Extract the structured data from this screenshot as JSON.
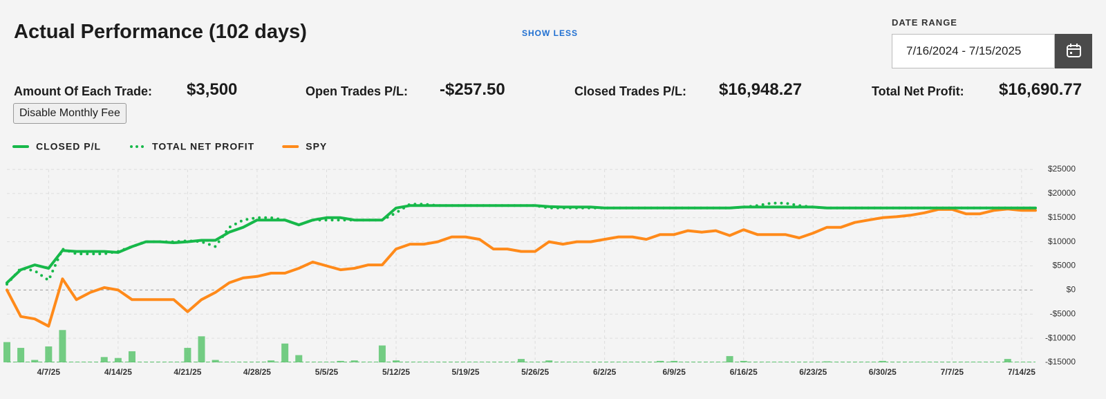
{
  "header": {
    "title": "Actual Performance (102 days)",
    "toggle": "SHOW LESS",
    "date_range_label": "DATE RANGE",
    "date_range": "7/16/2024 - 7/15/2025"
  },
  "stats": [
    {
      "label": "Amount Of Each Trade:",
      "value": "$3,500"
    },
    {
      "label": "Open Trades P/L:",
      "value": "-$257.50"
    },
    {
      "label": "Closed Trades P/L:",
      "value": "$16,948.27"
    },
    {
      "label": "Total Net Profit:",
      "value": "$16,690.77"
    }
  ],
  "button": "Disable Monthly Fee",
  "chart_data": {
    "type": "line",
    "categories": [
      null,
      null,
      null,
      "4/7/25",
      null,
      null,
      null,
      null,
      "4/14/25",
      null,
      null,
      null,
      null,
      "4/21/25",
      null,
      null,
      null,
      null,
      "4/28/25",
      null,
      null,
      null,
      null,
      "5/5/25",
      null,
      null,
      null,
      null,
      "5/12/25",
      null,
      null,
      null,
      null,
      "5/19/25",
      null,
      null,
      null,
      null,
      "5/26/25",
      null,
      null,
      null,
      null,
      "6/2/25",
      null,
      null,
      null,
      null,
      "6/9/25",
      null,
      null,
      null,
      null,
      "6/16/25",
      null,
      null,
      null,
      null,
      "6/23/25",
      null,
      null,
      null,
      null,
      "6/30/25",
      null,
      null,
      null,
      null,
      "7/7/25",
      null,
      null,
      null,
      null,
      "7/14/25",
      null
    ],
    "series": [
      {
        "name": "CLOSED P/L",
        "color": "#17b84a",
        "style": "solid",
        "values": [
          1500,
          4200,
          5200,
          4500,
          8200,
          8000,
          8000,
          8000,
          7800,
          9000,
          10000,
          10000,
          9800,
          10000,
          10300,
          10300,
          12000,
          13000,
          14500,
          14500,
          14500,
          13500,
          14500,
          15000,
          15000,
          14500,
          14500,
          14500,
          17000,
          17500,
          17500,
          17500,
          17500,
          17500,
          17500,
          17500,
          17500,
          17500,
          17500,
          17300,
          17200,
          17200,
          17200,
          17000,
          17000,
          17000,
          17000,
          17000,
          17000,
          17000,
          17000,
          17000,
          17000,
          17200,
          17200,
          17200,
          17200,
          17200,
          17200,
          17000,
          17000,
          17000,
          17000,
          17000,
          17000,
          17000,
          17000,
          17000,
          17000,
          17000,
          17000,
          17000,
          17000,
          17000,
          17000
        ]
      },
      {
        "name": "TOTAL NET PROFIT",
        "color": "#17b84a",
        "style": "dotted",
        "values": [
          1200,
          4500,
          4000,
          2000,
          8500,
          7500,
          7500,
          7500,
          8000,
          9000,
          10000,
          10000,
          10000,
          10200,
          10000,
          9000,
          13000,
          14500,
          15000,
          15000,
          14500,
          13500,
          14500,
          14500,
          14500,
          14500,
          14500,
          14500,
          16000,
          17800,
          17800,
          17500,
          17500,
          17500,
          17500,
          17500,
          17500,
          17500,
          17500,
          17000,
          17000,
          17000,
          17000,
          17000,
          17000,
          17000,
          17000,
          17000,
          17000,
          17000,
          17000,
          17000,
          17000,
          17200,
          17500,
          18000,
          18000,
          17500,
          17200,
          17000,
          17000,
          17000,
          17000,
          17000,
          17000,
          17000,
          17000,
          17000,
          17000,
          17000,
          17000,
          17000,
          17000,
          17000,
          17000
        ]
      },
      {
        "name": "SPY",
        "color": "#ff8a1a",
        "style": "solid",
        "values": [
          0,
          -5500,
          -6000,
          -7500,
          2300,
          -2000,
          -500,
          500,
          0,
          -2000,
          -2000,
          -2000,
          -2000,
          -4500,
          -2000,
          -500,
          1500,
          2500,
          2800,
          3500,
          3500,
          4500,
          5800,
          5000,
          4200,
          4500,
          5200,
          5200,
          8500,
          9500,
          9500,
          10000,
          11000,
          11000,
          10500,
          8500,
          8500,
          8000,
          8000,
          10000,
          9500,
          10000,
          10000,
          10500,
          11000,
          11000,
          10500,
          11500,
          11500,
          12300,
          12000,
          12300,
          11300,
          12500,
          11500,
          11500,
          11500,
          10800,
          11800,
          13000,
          13000,
          14000,
          14500,
          15000,
          15200,
          15500,
          16000,
          16700,
          16700,
          15800,
          15800,
          16500,
          16800,
          16500,
          16500
        ]
      }
    ],
    "daily_bars": {
      "color": "#5cc46f",
      "values": [
        4200,
        3000,
        500,
        3300,
        6700,
        null,
        null,
        1100,
        900,
        2300,
        null,
        null,
        null,
        3000,
        5400,
        500,
        null,
        null,
        null,
        400,
        3900,
        1500,
        null,
        null,
        300,
        400,
        null,
        3500,
        400,
        null,
        null,
        null,
        null,
        null,
        null,
        null,
        null,
        700,
        null,
        400,
        null,
        null,
        null,
        null,
        null,
        null,
        null,
        300,
        300,
        null,
        null,
        null,
        1300,
        300,
        null,
        null,
        null,
        null,
        null,
        200,
        null,
        null,
        null,
        300,
        null,
        null,
        null,
        null,
        null,
        null,
        null,
        null,
        700,
        null,
        null
      ]
    },
    "ylim": [
      -15000,
      25000
    ],
    "yticks": [
      {
        "value": 25000,
        "label": "$25000"
      },
      {
        "value": 20000,
        "label": "$20000"
      },
      {
        "value": 15000,
        "label": "$15000"
      },
      {
        "value": 10000,
        "label": "$10000"
      },
      {
        "value": 5000,
        "label": "$5000"
      },
      {
        "value": 0,
        "label": "$0"
      },
      {
        "value": -5000,
        "label": "-$5000"
      },
      {
        "value": -10000,
        "label": "-$10000"
      },
      {
        "value": -15000,
        "label": "-$15000"
      }
    ],
    "grid": true
  }
}
